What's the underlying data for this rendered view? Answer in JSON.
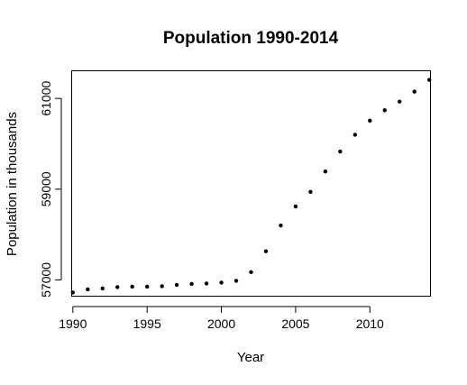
{
  "chart_data": {
    "type": "scatter",
    "title": "Population 1990-2014",
    "xlabel": "Year",
    "ylabel": "Population in thousands",
    "xlim": [
      1989.95,
      2014.05
    ],
    "ylim": [
      56650,
      61600
    ],
    "x_ticks": [
      1990,
      1995,
      2000,
      2005,
      2010
    ],
    "y_ticks": [
      57000,
      59000,
      61000
    ],
    "x_tick_labels": [
      "1990",
      "1995",
      "2000",
      "2005",
      "2010"
    ],
    "y_tick_labels": [
      "57000",
      "59000",
      "61000"
    ],
    "grid": false,
    "point_color": "#000000",
    "series": [
      {
        "x": [
          1990,
          1991,
          1992,
          1993,
          1994,
          1995,
          1996,
          1997,
          1998,
          1999,
          2000,
          2001,
          2002,
          2003,
          2004,
          2005,
          2006,
          2007,
          2008,
          2009,
          2010,
          2011,
          2012,
          2013,
          2014
        ],
        "y": [
          56720,
          56790,
          56810,
          56840,
          56850,
          56850,
          56860,
          56890,
          56910,
          56920,
          56940,
          56980,
          57170,
          57630,
          58200,
          58620,
          58940,
          59390,
          59830,
          60200,
          60510,
          60740,
          60930,
          61150,
          61410
        ]
      }
    ]
  }
}
